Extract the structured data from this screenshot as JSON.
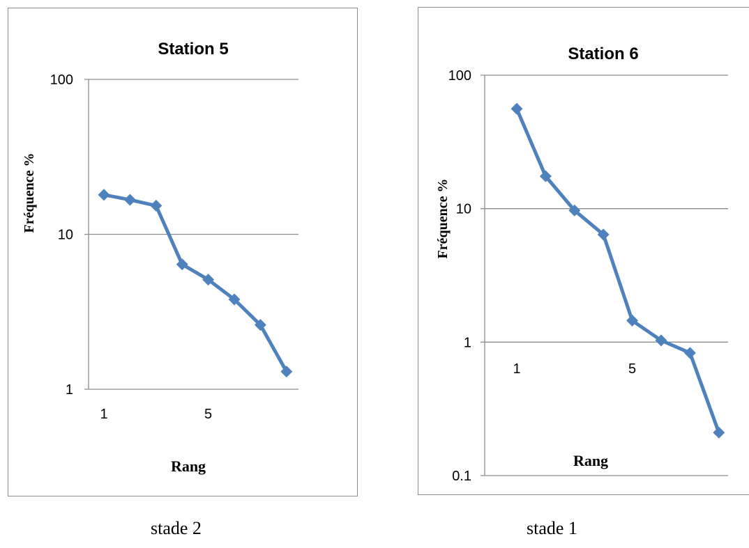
{
  "chart_data": [
    {
      "type": "line",
      "title": "Station 5",
      "xlabel": "Rang",
      "ylabel": "Fréquence %",
      "caption": "stade 2",
      "yscale": "log",
      "ylim": [
        1,
        100
      ],
      "xlim": [
        0.5,
        8.5
      ],
      "y_ticks": [
        {
          "value": 1,
          "label": "1"
        },
        {
          "value": 10,
          "label": "10"
        },
        {
          "value": 100,
          "label": "100"
        }
      ],
      "x_ticks": [
        {
          "value": 1,
          "label": "1"
        },
        {
          "value": 5,
          "label": "5"
        }
      ],
      "grid": "horizontal",
      "color": "#4f81bd",
      "series": [
        {
          "x": [
            1,
            2,
            3,
            4,
            5,
            6,
            7,
            8
          ],
          "values": [
            18,
            16.7,
            15.3,
            6.4,
            5.1,
            3.8,
            2.6,
            1.3
          ]
        }
      ]
    },
    {
      "type": "line",
      "title": "Station 6",
      "xlabel": "Rang",
      "ylabel": "Fréquence %",
      "caption": "stade 1",
      "yscale": "log",
      "ylim": [
        0.1,
        100
      ],
      "xlim": [
        0.5,
        8.5
      ],
      "y_ticks": [
        {
          "value": 0.1,
          "label": "0.1"
        },
        {
          "value": 1,
          "label": "1"
        },
        {
          "value": 10,
          "label": "10"
        },
        {
          "value": 100,
          "label": "100"
        }
      ],
      "x_ticks": [
        {
          "value": 1,
          "label": "1"
        },
        {
          "value": 5,
          "label": "5"
        }
      ],
      "grid": "horizontal",
      "color": "#4f81bd",
      "series": [
        {
          "x": [
            1,
            2,
            3,
            4,
            5,
            6,
            7,
            8
          ],
          "values": [
            56,
            17.5,
            9.7,
            6.4,
            1.45,
            1.03,
            0.83,
            0.21
          ]
        }
      ]
    }
  ]
}
